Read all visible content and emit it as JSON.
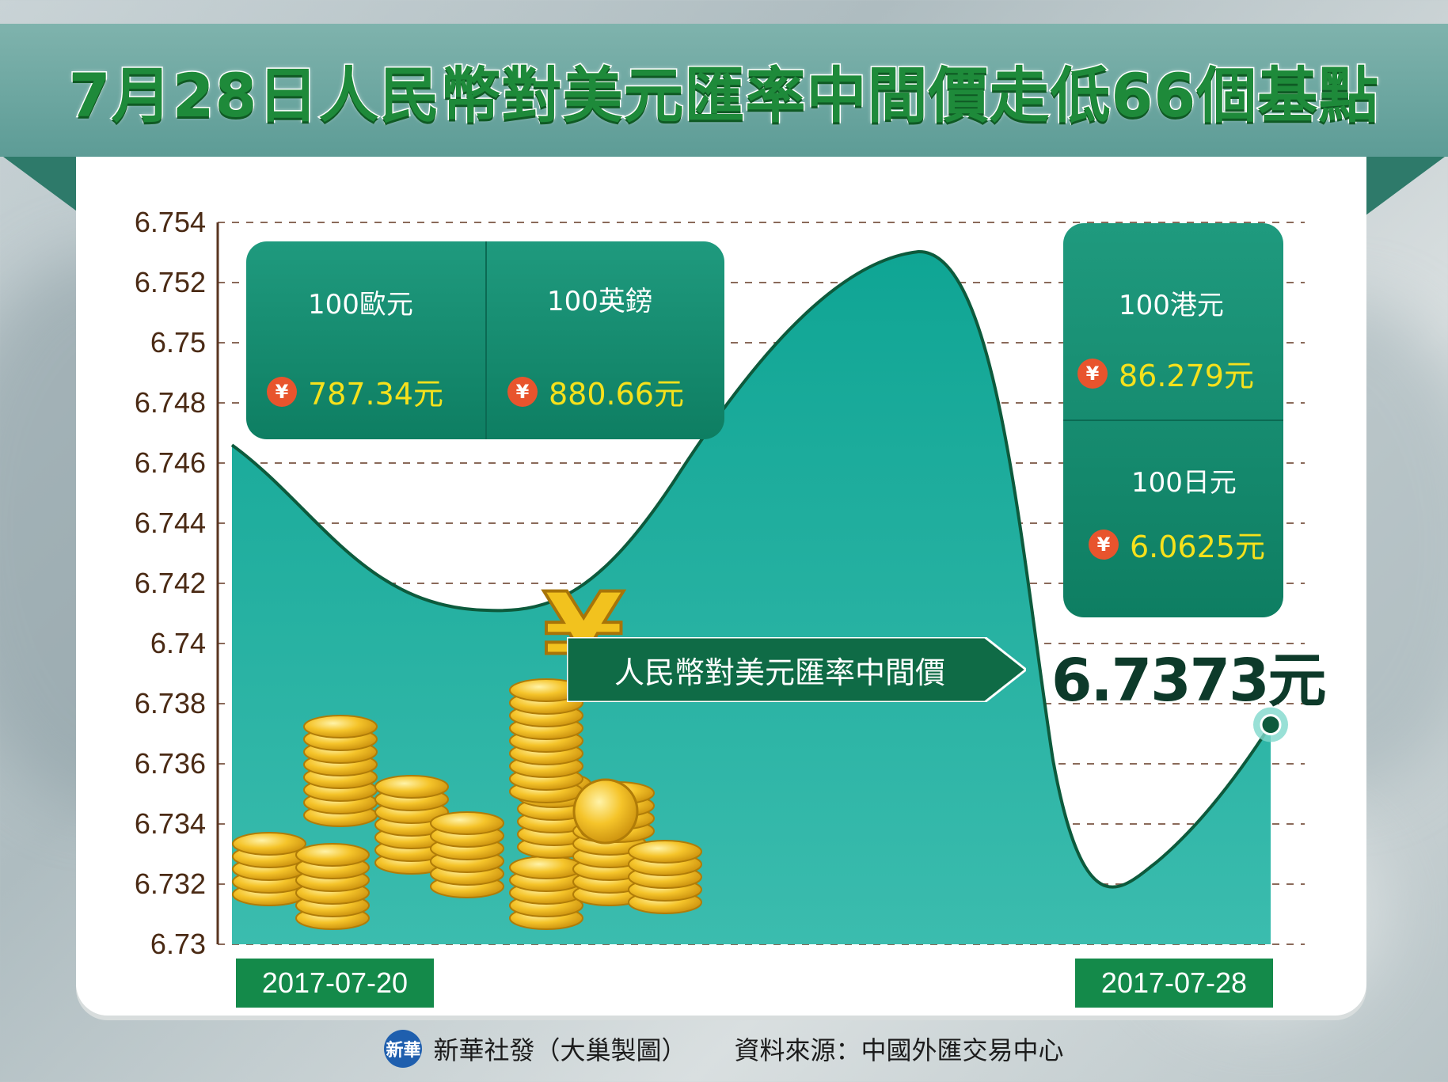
{
  "title": "7月28日人民幣對美元匯率中間價走低66個基點",
  "chart_data": {
    "type": "area",
    "x": [
      "2017-07-20",
      "2017-07-28"
    ],
    "series": [
      {
        "name": "人民幣對美元匯率中間價",
        "start_value": 6.7466,
        "end_value": 6.7373,
        "color": "#1aa898"
      }
    ],
    "ylim": [
      6.73,
      6.754
    ],
    "yticks": [
      "6.754",
      "6.752",
      "6.75",
      "6.748",
      "6.746",
      "6.744",
      "6.742",
      "6.74",
      "6.738",
      "6.736",
      "6.734",
      "6.732",
      "6.73"
    ],
    "grid": true,
    "callout": {
      "label": "人民幣對美元匯率中間價",
      "value": "6.7373元"
    }
  },
  "panels": {
    "eur": {
      "label": "100歐元",
      "value": "787.34元"
    },
    "gbp": {
      "label": "100英鎊",
      "value": "880.66元"
    },
    "hkd": {
      "label": "100港元",
      "value": "86.279元"
    },
    "jpy": {
      "label": "100日元",
      "value": "6.0625元"
    },
    "yen_symbol": "¥"
  },
  "footer": {
    "publisher": "新華社發（大巢製圖）",
    "source": "資料來源：中國外匯交易中心",
    "logo_text": "新華"
  },
  "colors": {
    "banner": "#6aa8a1",
    "title": "#1e8a3a",
    "area": "#1aa898",
    "panel": "#138a6c",
    "date_tag": "#148a4a",
    "value_yellow": "#f6e11c",
    "yen_badge": "#e8542d"
  }
}
